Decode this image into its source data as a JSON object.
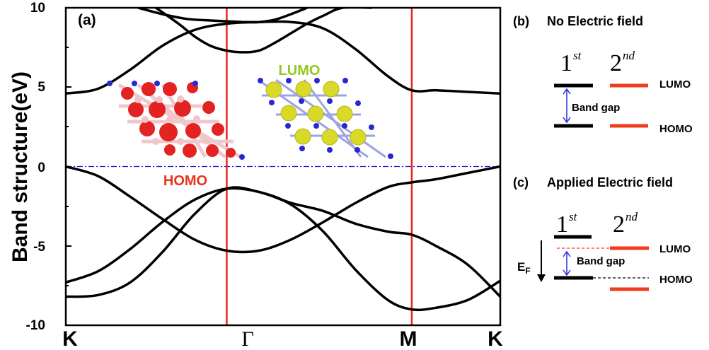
{
  "chart_data": [
    {
      "panel_label": "(a)",
      "type": "line",
      "ylabel": "Band structure(eV)",
      "ylim": [
        -10,
        10
      ],
      "yticks": [
        "10",
        "5",
        "0",
        "-5",
        "-10"
      ],
      "xticks": [
        "K",
        "Γ",
        "M",
        "K"
      ],
      "x_positions": [
        0,
        1,
        2.15,
        2.7
      ],
      "fermi_level": 0,
      "series": [
        {
          "x": [
            0,
            0.2,
            0.4,
            0.6,
            0.8,
            1.0,
            1.2,
            1.4,
            1.6,
            1.8,
            2.0,
            2.15,
            2.3,
            2.5,
            2.7
          ],
          "y": [
            -7.3,
            -6.6,
            -5.2,
            -3.5,
            -2.1,
            -1.4,
            -1.6,
            -2.4,
            -4.1,
            -6.5,
            -8.4,
            -9.0,
            -8.9,
            -8.4,
            -7.2
          ]
        },
        {
          "x": [
            0,
            0.2,
            0.4,
            0.6,
            0.8,
            1.0,
            1.2,
            1.4,
            1.6,
            1.8,
            2.0,
            2.15,
            2.3,
            2.5,
            2.7
          ],
          "y": [
            -8.2,
            -8.1,
            -7.3,
            -5.4,
            -3.0,
            -1.4,
            -1.6,
            -2.3,
            -2.8,
            -3.6,
            -4.1,
            -4.3,
            -5.0,
            -6.2,
            -8.2
          ]
        },
        {
          "x": [
            0,
            0.2,
            0.4,
            0.6,
            0.8,
            1.0,
            1.2,
            1.4,
            1.6,
            1.8,
            2.0,
            2.15,
            2.3,
            2.5,
            2.7
          ],
          "y": [
            0.0,
            -0.6,
            -1.9,
            -3.3,
            -4.6,
            -5.3,
            -5.3,
            -4.6,
            -3.5,
            -2.3,
            -1.3,
            -1.0,
            -0.8,
            -0.4,
            0.0
          ]
        },
        {
          "x": [
            0,
            0.2,
            0.4,
            0.6,
            0.8,
            1.0,
            1.2,
            1.4,
            1.6,
            1.8,
            2.0,
            2.15,
            2.3,
            2.5,
            2.7
          ],
          "y": [
            4.6,
            4.9,
            6.1,
            7.6,
            8.6,
            9.0,
            9.1,
            9.1,
            8.7,
            7.4,
            5.7,
            4.8,
            4.8,
            4.7,
            4.6
          ]
        },
        {
          "x": [
            0.56,
            0.7,
            0.8,
            0.9,
            1.0,
            1.1,
            1.2,
            1.3,
            1.4,
            1.5,
            1.6,
            1.72,
            1.9
          ],
          "y": [
            10.0,
            9.0,
            8.2,
            7.6,
            7.3,
            7.2,
            7.3,
            7.8,
            8.4,
            9.0,
            9.5,
            10.0,
            10.0
          ]
        },
        {
          "x": [
            0.45,
            0.6,
            0.75,
            0.9,
            1.0,
            1.1,
            1.2,
            1.3,
            1.4,
            1.5
          ],
          "y": [
            10.0,
            9.6,
            9.3,
            9.2,
            9.15,
            9.1,
            9.1,
            9.25,
            9.6,
            10.0
          ]
        }
      ],
      "annotations": {
        "homo": "HOMO",
        "lumo": "LUMO"
      }
    }
  ],
  "panel_b": {
    "label": "(b)",
    "title": "No Electric field",
    "first": "1",
    "first_sup": "st",
    "second": "2",
    "second_sup": "nd",
    "lumo": "LUMO",
    "homo": "HOMO",
    "gap": "Band gap"
  },
  "panel_c": {
    "label": "(c)",
    "title": "Applied Electric field",
    "first": "1",
    "first_sup": "st",
    "second": "2",
    "second_sup": "nd",
    "lumo": "LUMO",
    "homo": "HOMO",
    "gap": "Band gap",
    "field": "E",
    "field_sub": "F"
  },
  "colors": {
    "band": "#000000",
    "symmetry_line": "#e8251a",
    "fermi_line": "#1a1acd",
    "level_second": "#f03c1e",
    "gap_arrow": "#2a2ae0",
    "homo_text": "#e8341c",
    "lumo_text": "#93c91e",
    "atom_red": "#e32222",
    "atom_pink": "#f2c4c8",
    "atom_yellow": "#d9d92a",
    "atom_blue": "#2828d2"
  }
}
